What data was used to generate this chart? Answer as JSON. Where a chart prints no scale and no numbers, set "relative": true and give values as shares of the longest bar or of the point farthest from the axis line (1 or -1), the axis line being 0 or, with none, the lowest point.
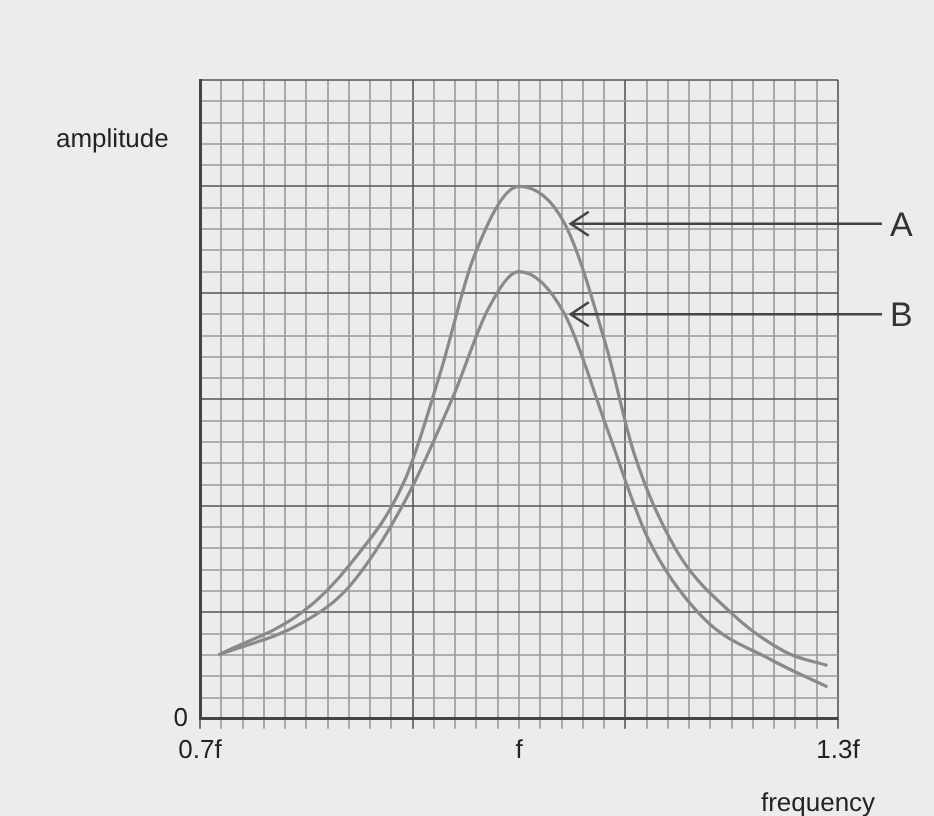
{
  "chart_data": {
    "type": "line",
    "relative": true,
    "xlabel": "frequency",
    "ylabel": "amplitude",
    "grid": true,
    "legend": false,
    "marker": "none",
    "line_style": "solid",
    "xlim": [
      0.7,
      1.3
    ],
    "xticks": [
      {
        "value": 0.7,
        "label": "0.7f"
      },
      {
        "value": 0.72,
        "label": null
      },
      {
        "value": 0.74,
        "label": null
      },
      {
        "value": 0.76,
        "label": null
      },
      {
        "value": 0.78,
        "label": null
      },
      {
        "value": 0.8,
        "label": null
      },
      {
        "value": 0.82,
        "label": null
      },
      {
        "value": 0.84,
        "label": null
      },
      {
        "value": 0.86,
        "label": null
      },
      {
        "value": 0.88,
        "label": null
      },
      {
        "value": 0.9,
        "label": null
      },
      {
        "value": 0.92,
        "label": null
      },
      {
        "value": 0.94,
        "label": null
      },
      {
        "value": 0.96,
        "label": null
      },
      {
        "value": 0.98,
        "label": null
      },
      {
        "value": 1,
        "label": "f"
      },
      {
        "value": 1.02,
        "label": null
      },
      {
        "value": 1.04,
        "label": null
      },
      {
        "value": 1.06,
        "label": null
      },
      {
        "value": 1.08,
        "label": null
      },
      {
        "value": 1.1,
        "label": null
      },
      {
        "value": 1.12,
        "label": null
      },
      {
        "value": 1.14,
        "label": null
      },
      {
        "value": 1.16,
        "label": null
      },
      {
        "value": 1.18,
        "label": null
      },
      {
        "value": 1.2,
        "label": null
      },
      {
        "value": 1.22,
        "label": null
      },
      {
        "value": 1.24,
        "label": null
      },
      {
        "value": 1.26,
        "label": null
      },
      {
        "value": 1.28,
        "label": null
      },
      {
        "value": 1.3,
        "label": "1.3f"
      }
    ],
    "series": [
      {
        "name": "A",
        "color": "#8a8a8a",
        "x": [
          0.7175,
          0.796,
          0.841,
          0.893,
          0.926,
          0.958,
          1.0,
          1.043,
          1.082,
          1.108,
          1.147,
          1.199,
          1.251,
          1.29
        ],
        "values": [
          0.12,
          0.2,
          0.29,
          0.45,
          0.65,
          0.87,
          1.0,
          0.93,
          0.7,
          0.5,
          0.32,
          0.2,
          0.125,
          0.1
        ]
      },
      {
        "name": "B",
        "color": "#8a8a8a",
        "x": [
          0.7175,
          0.796,
          0.841,
          0.893,
          0.939,
          0.971,
          1.0,
          1.043,
          1.082,
          1.121,
          1.173,
          1.238,
          1.29
        ],
        "values": [
          0.12,
          0.18,
          0.25,
          0.41,
          0.61,
          0.77,
          0.84,
          0.76,
          0.55,
          0.34,
          0.19,
          0.11,
          0.06
        ]
      }
    ],
    "annotations": [
      "0"
    ]
  }
}
